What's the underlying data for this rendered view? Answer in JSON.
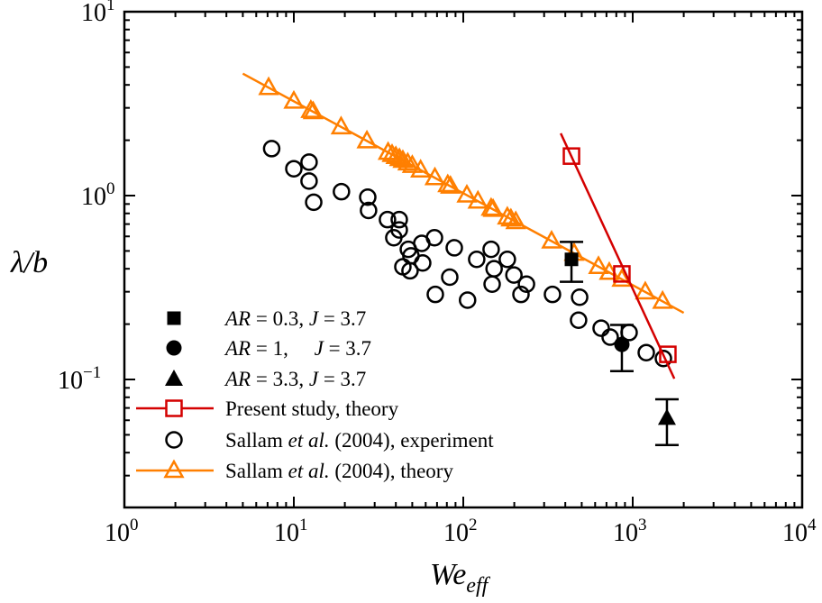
{
  "chart_data": {
    "type": "scatter",
    "x_scale": "log",
    "y_scale": "log",
    "xlim": [
      1,
      10000
    ],
    "ylim": [
      0.02,
      10
    ],
    "grid": false,
    "legend_placement": "bottom-left",
    "xlabel": {
      "main": "We",
      "sub": "eff"
    },
    "ylabel": "λ/b",
    "xticks": [
      {
        "base": "10",
        "exp": "0"
      },
      {
        "base": "10",
        "exp": "1"
      },
      {
        "base": "10",
        "exp": "2"
      },
      {
        "base": "10",
        "exp": "3"
      },
      {
        "base": "10",
        "exp": "4"
      }
    ],
    "yticks": [
      {
        "base": "10",
        "exp": "−1"
      },
      {
        "base": "10",
        "exp": "0"
      },
      {
        "base": "10",
        "exp": "1"
      }
    ],
    "colors": {
      "present": "#D40000",
      "sallam_theory": "#FF7F00",
      "markers": "#000000"
    },
    "series": [
      {
        "name": "AR = 0.3, J = 3.7",
        "marker": "filled-square",
        "points": [
          {
            "x": 435,
            "y": 0.45,
            "ylow": 0.34,
            "yhigh": 0.56
          }
        ]
      },
      {
        "name": "AR = 1, J = 3.7",
        "marker": "filled-circle",
        "points": [
          {
            "x": 863,
            "y": 0.155,
            "ylow": 0.111,
            "yhigh": 0.198
          }
        ]
      },
      {
        "name": "AR = 3.3, J = 3.7",
        "marker": "filled-triangle",
        "points": [
          {
            "x": 1592,
            "y": 0.062,
            "ylow": 0.044,
            "yhigh": 0.078
          }
        ]
      },
      {
        "name": "Present study, theory",
        "marker": "open-square",
        "color": "#D40000",
        "line": {
          "x": [
            376,
            1760
          ],
          "y": [
            2.18,
            0.101
          ]
        },
        "points": [
          {
            "x": 435,
            "y": 1.64
          },
          {
            "x": 863,
            "y": 0.375
          },
          {
            "x": 1612,
            "y": 0.137
          }
        ]
      },
      {
        "name": "Sallam et al. (2004), experiment",
        "marker": "open-circle",
        "x": [
          7.4,
          10,
          12.3,
          12.3,
          13.1,
          19.1,
          27.3,
          27.6,
          35.7,
          41.9,
          41.9,
          38.9,
          56.9,
          67.6,
          47.4,
          49.1,
          57.6,
          44.0,
          48.5,
          88.5,
          120,
          146,
          182,
          152,
          199,
          236,
          148,
          83.2,
          68.4,
          106,
          219,
          336,
          486,
          479,
          651,
          736,
          952,
          1202,
          1517
        ],
        "y": [
          1.8,
          1.4,
          1.52,
          1.2,
          0.92,
          1.05,
          0.98,
          0.83,
          0.74,
          0.74,
          0.65,
          0.59,
          0.55,
          0.59,
          0.51,
          0.47,
          0.43,
          0.41,
          0.39,
          0.52,
          0.45,
          0.51,
          0.45,
          0.4,
          0.37,
          0.33,
          0.33,
          0.36,
          0.29,
          0.27,
          0.29,
          0.29,
          0.28,
          0.21,
          0.19,
          0.17,
          0.18,
          0.14,
          0.13
        ]
      },
      {
        "name": "Sallam et al. (2004), theory",
        "marker": "open-triangle",
        "color": "#FF7F00",
        "relation": "λ/b ≈ 10.3 We_eff^-0.5",
        "line": {
          "x": [
            5,
            2000
          ]
        },
        "x": [
          7.1,
          10,
          12.6,
          13,
          19,
          27,
          36,
          38,
          40,
          42,
          44,
          47,
          50,
          56,
          68,
          81,
          84,
          105,
          122,
          146,
          150,
          182,
          191,
          204,
          332,
          451,
          628,
          727,
          863,
          1186,
          1500
        ]
      }
    ],
    "legend": [
      {
        "marker": "filled-square",
        "segments": [
          {
            "t": "AR",
            "i": true
          },
          {
            "t": " = 0.3, "
          },
          {
            "t": "J",
            "i": true
          },
          {
            "t": " = 3.7"
          }
        ]
      },
      {
        "marker": "filled-circle",
        "segments": [
          {
            "t": "AR",
            "i": true
          },
          {
            "t": " = 1,     "
          },
          {
            "t": "J",
            "i": true
          },
          {
            "t": " = 3.7"
          }
        ]
      },
      {
        "marker": "filled-triangle",
        "segments": [
          {
            "t": "AR",
            "i": true
          },
          {
            "t": " = 3.3, "
          },
          {
            "t": "J",
            "i": true
          },
          {
            "t": " = 3.7"
          }
        ]
      },
      {
        "marker": "open-square",
        "line": "#D40000",
        "segments": [
          {
            "t": "Present study, theory"
          }
        ]
      },
      {
        "marker": "open-circle",
        "segments": [
          {
            "t": "Sallam "
          },
          {
            "t": "et al.",
            "i": true
          },
          {
            "t": " (2004), experiment"
          }
        ]
      },
      {
        "marker": "open-triangle",
        "line": "#FF7F00",
        "segments": [
          {
            "t": "Sallam "
          },
          {
            "t": "et al.",
            "i": true
          },
          {
            "t": " (2004), theory"
          }
        ]
      }
    ]
  }
}
